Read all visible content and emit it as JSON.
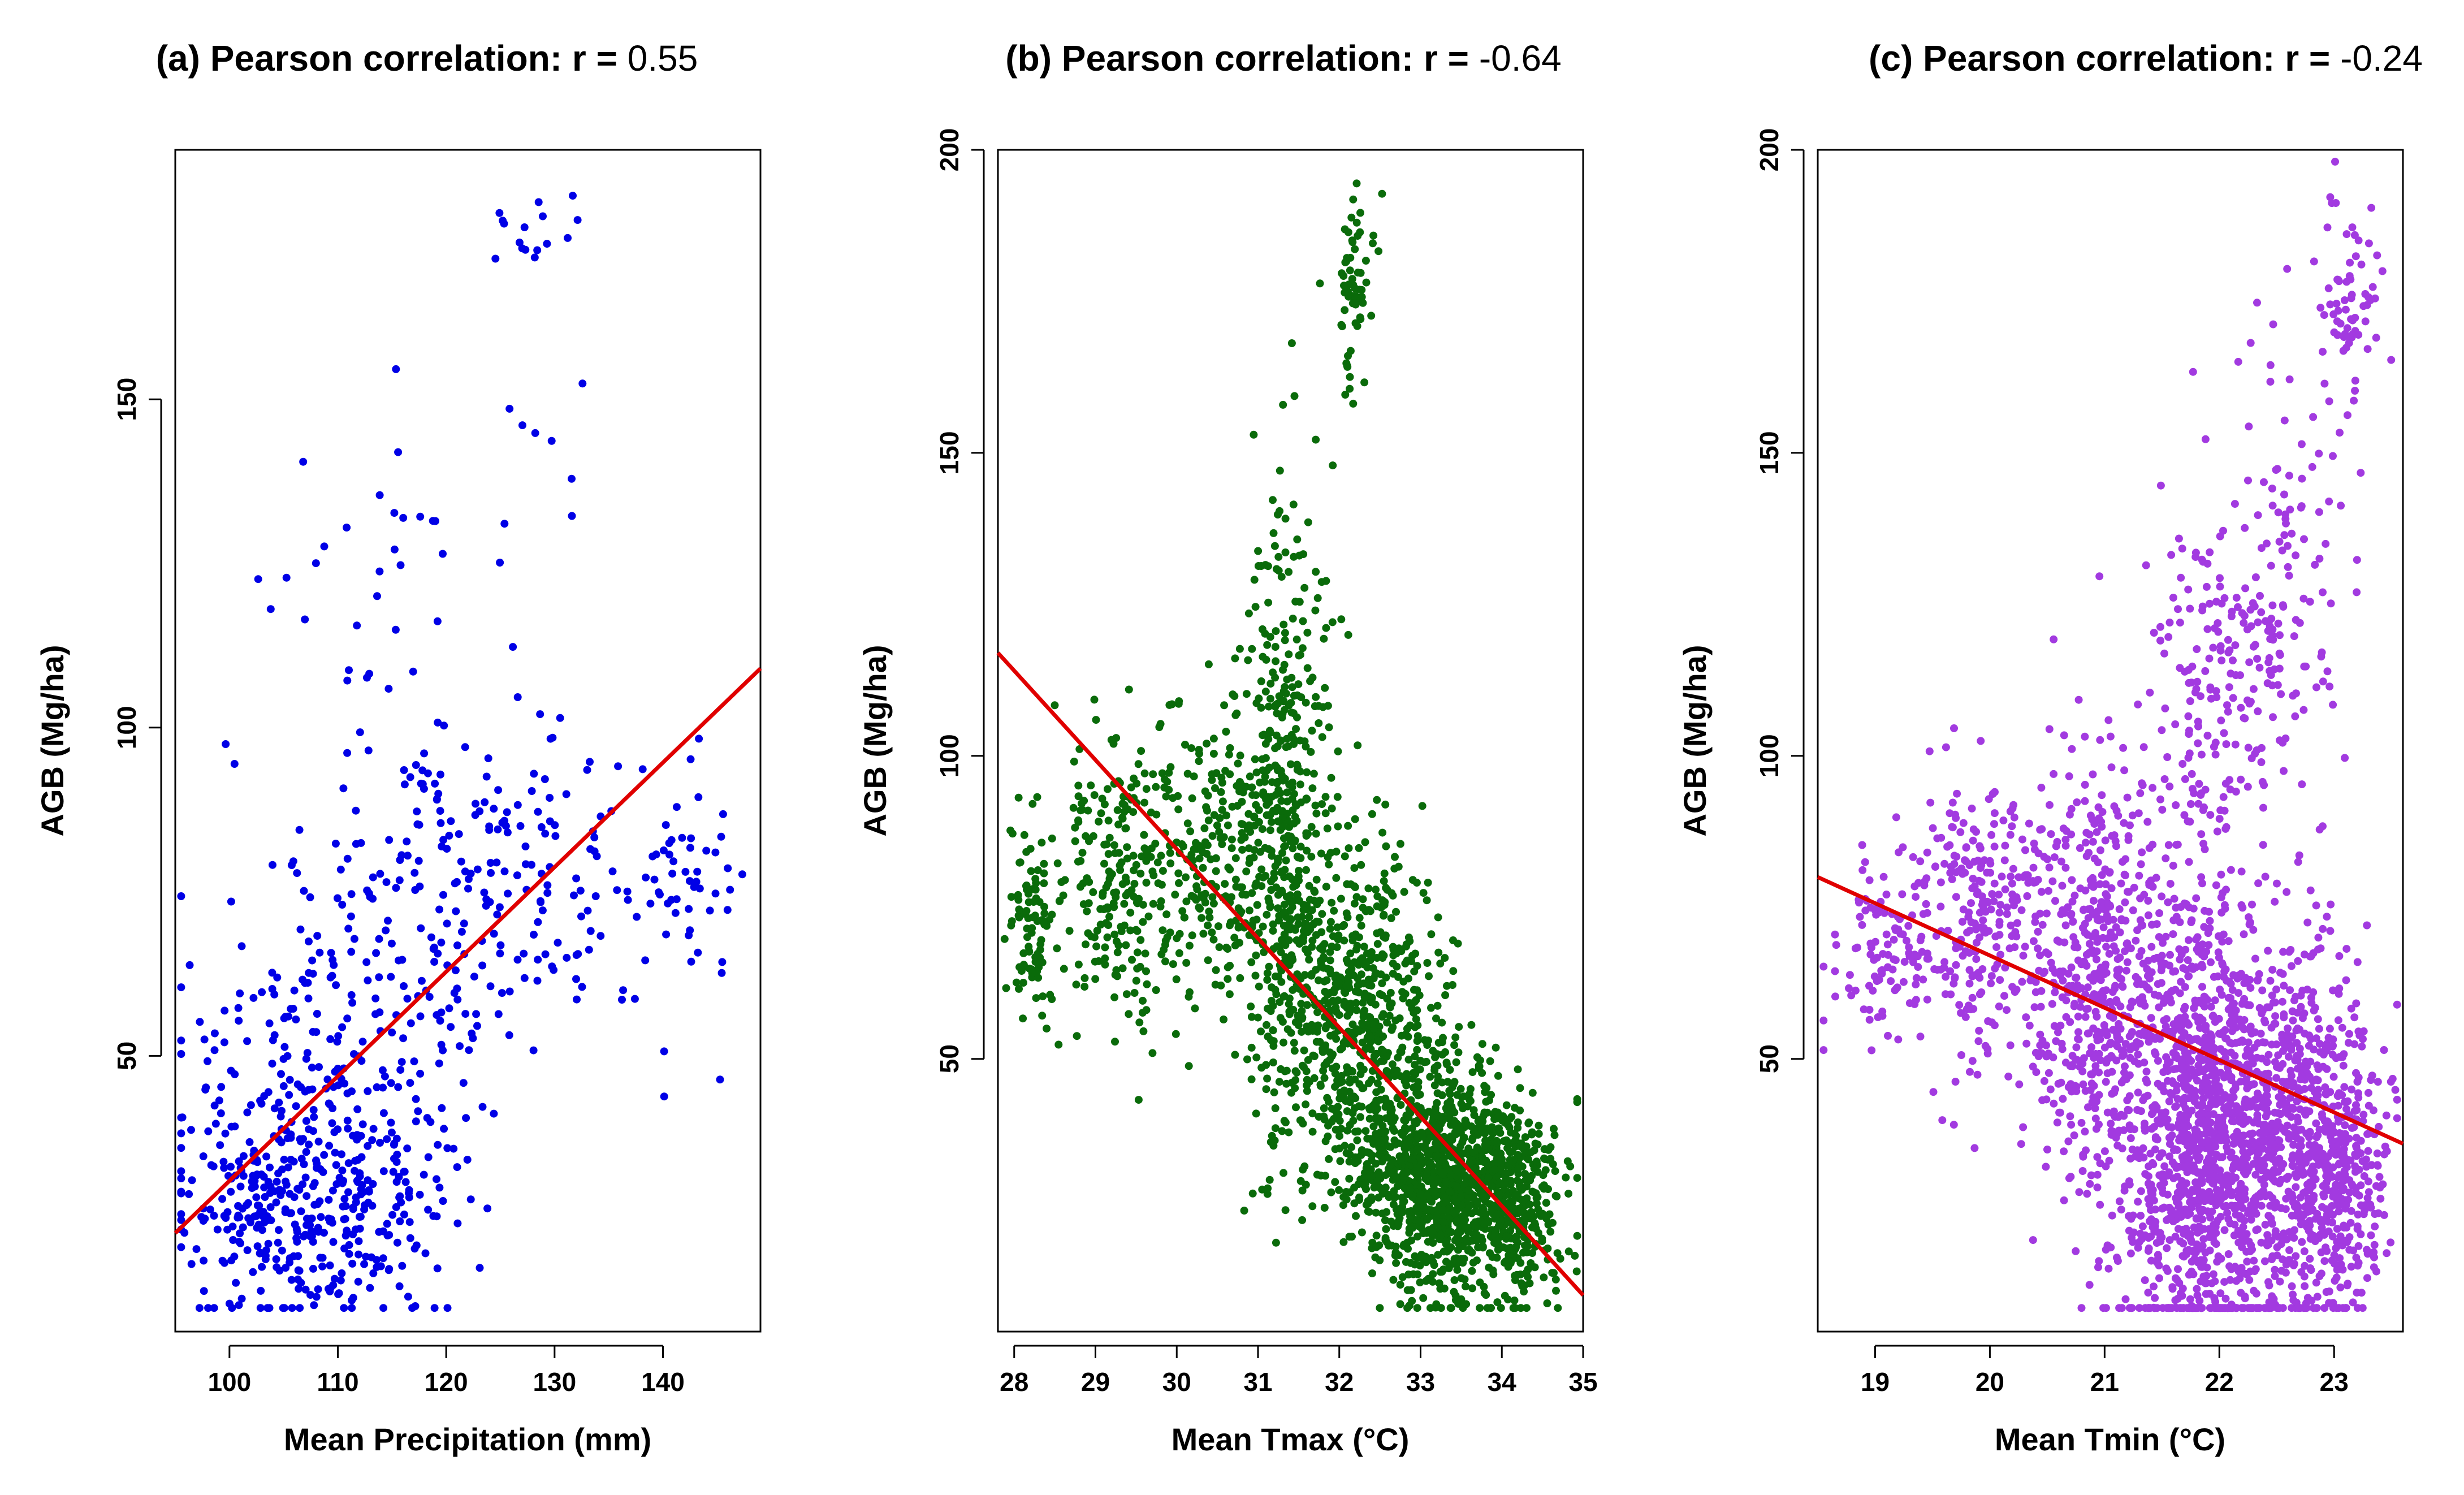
{
  "chart_data": [
    {
      "type": "scatter",
      "title_prefix": "(a) Pearson correlation: r = ",
      "title_value": "0.55",
      "xlabel": "Mean Precipitation (mm)",
      "ylabel": "AGB (Mg/ha)",
      "xlim": [
        95,
        149
      ],
      "ylim": [
        8,
        188
      ],
      "xticks": [
        100,
        110,
        120,
        130,
        140
      ],
      "yticks": [
        50,
        100,
        150
      ],
      "grid": false,
      "point_color": "#0000e6",
      "line_color": "#e00000",
      "fit_line": {
        "x": [
          95,
          149
        ],
        "y": [
          23,
          109
        ]
      },
      "clusters": [
        {
          "cx": 107,
          "cy": 26,
          "sx": 6.0,
          "sy": 8.5,
          "n": 380,
          "seed": 11
        },
        {
          "cx": 108,
          "cy": 48,
          "sx": 6.0,
          "sy": 11,
          "n": 160,
          "seed": 12
        },
        {
          "cx": 117,
          "cy": 72,
          "sx": 9.0,
          "sy": 16,
          "n": 190,
          "seed": 13
        },
        {
          "cx": 128,
          "cy": 80,
          "sx": 7.0,
          "sy": 14,
          "n": 90,
          "seed": 14
        },
        {
          "cx": 142,
          "cy": 76,
          "sx": 2.6,
          "sy": 9,
          "n": 45,
          "seed": 15
        },
        {
          "cx": 128,
          "cy": 176,
          "sx": 2.2,
          "sy": 4,
          "n": 16,
          "seed": 16
        },
        {
          "cx": 112,
          "cy": 128,
          "sx": 6.0,
          "sy": 13,
          "n": 26,
          "seed": 17
        },
        {
          "cx": 132,
          "cy": 142,
          "sx": 3.5,
          "sy": 8,
          "n": 8,
          "seed": 18
        }
      ]
    },
    {
      "type": "scatter",
      "title_prefix": "(b) Pearson correlation: r = ",
      "title_value": "-0.64",
      "xlabel": "Mean Tmax (°C)",
      "ylabel": "AGB (Mg/ha)",
      "xlim": [
        27.8,
        35
      ],
      "ylim": [
        5,
        200
      ],
      "xticks": [
        28,
        29,
        30,
        31,
        32,
        33,
        34,
        35
      ],
      "yticks": [
        50,
        100,
        150,
        200
      ],
      "grid": false,
      "point_color": "#0a6b0a",
      "line_color": "#e00000",
      "fit_line": {
        "x": [
          27.8,
          35
        ],
        "y": [
          117,
          11
        ]
      },
      "clusters": [
        {
          "cx": 28.2,
          "cy": 72,
          "sx": 0.14,
          "sy": 8,
          "n": 90,
          "seed": 21
        },
        {
          "cx": 29.2,
          "cy": 80,
          "sx": 0.4,
          "sy": 11,
          "n": 210,
          "seed": 22
        },
        {
          "cx": 30.4,
          "cy": 82,
          "sx": 0.45,
          "sy": 13,
          "n": 240,
          "seed": 23
        },
        {
          "cx": 31.3,
          "cy": 92,
          "sx": 0.28,
          "sy": 24,
          "n": 420,
          "seed": 24
        },
        {
          "cx": 32.2,
          "cy": 56,
          "sx": 0.55,
          "sy": 14,
          "n": 680,
          "seed": 25
        },
        {
          "cx": 33.3,
          "cy": 30,
          "sx": 0.55,
          "sy": 9,
          "n": 1150,
          "seed": 26
        },
        {
          "cx": 34.2,
          "cy": 24,
          "sx": 0.25,
          "sy": 7,
          "n": 240,
          "seed": 27
        },
        {
          "cx": 32.2,
          "cy": 176,
          "sx": 0.12,
          "sy": 8,
          "n": 65,
          "seed": 28
        }
      ]
    },
    {
      "type": "scatter",
      "title_prefix": "(c) Pearson correlation: r = ",
      "title_value": "-0.24",
      "xlabel": "Mean Tmin (°C)",
      "ylabel": "AGB (Mg/ha)",
      "xlim": [
        18.5,
        23.6
      ],
      "ylim": [
        5,
        200
      ],
      "xticks": [
        19,
        20,
        21,
        22,
        23
      ],
      "yticks": [
        50,
        100,
        150,
        200
      ],
      "grid": false,
      "point_color": "#a23ae0",
      "line_color": "#e00000",
      "fit_line": {
        "x": [
          18.5,
          23.6
        ],
        "y": [
          80,
          36
        ]
      },
      "clusters": [
        {
          "cx": 19.1,
          "cy": 68,
          "sx": 0.25,
          "sy": 7,
          "n": 110,
          "seed": 31
        },
        {
          "cx": 19.9,
          "cy": 74,
          "sx": 0.3,
          "sy": 12,
          "n": 260,
          "seed": 32
        },
        {
          "cx": 20.9,
          "cy": 62,
          "sx": 0.3,
          "sy": 18,
          "n": 520,
          "seed": 33
        },
        {
          "cx": 21.8,
          "cy": 38,
          "sx": 0.35,
          "sy": 19,
          "n": 1150,
          "seed": 34
        },
        {
          "cx": 22.6,
          "cy": 36,
          "sx": 0.35,
          "sy": 16,
          "n": 720,
          "seed": 35
        },
        {
          "cx": 23.1,
          "cy": 30,
          "sx": 0.2,
          "sy": 10,
          "n": 220,
          "seed": 36
        },
        {
          "cx": 23.15,
          "cy": 176,
          "sx": 0.12,
          "sy": 9,
          "n": 70,
          "seed": 37
        },
        {
          "cx": 22.6,
          "cy": 130,
          "sx": 0.25,
          "sy": 16,
          "n": 110,
          "seed": 38
        },
        {
          "cx": 21.9,
          "cy": 110,
          "sx": 0.35,
          "sy": 14,
          "n": 170,
          "seed": 39
        }
      ]
    }
  ]
}
